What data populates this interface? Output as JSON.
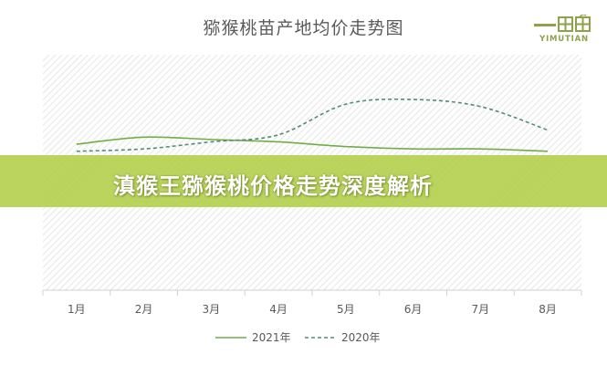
{
  "banner": {
    "text": "滇猴王猕猴桃价格走势深度解析"
  },
  "logo": {
    "text": "YIMUTIAN"
  },
  "colors": {
    "series_2021": "#70ad47",
    "series_2020": "#548b7a",
    "banner": "#b2ce48",
    "grid_hatch": "#e6e6e6"
  },
  "chart_data": {
    "type": "line",
    "title": "猕猴桃苗产地均价走势图",
    "categories": [
      "1月",
      "2月",
      "3月",
      "4月",
      "5月",
      "6月",
      "7月",
      "8月"
    ],
    "ylim": [
      0,
      10
    ],
    "grid": false,
    "legend": "bottom",
    "series": [
      {
        "name": "2021年",
        "style": "solid",
        "values": [
          6.2,
          6.5,
          6.4,
          6.3,
          6.1,
          6.0,
          6.0,
          5.9
        ]
      },
      {
        "name": "2020年",
        "style": "dashed",
        "values": [
          5.9,
          6.0,
          6.3,
          6.6,
          7.9,
          8.1,
          7.8,
          6.8
        ]
      }
    ]
  }
}
